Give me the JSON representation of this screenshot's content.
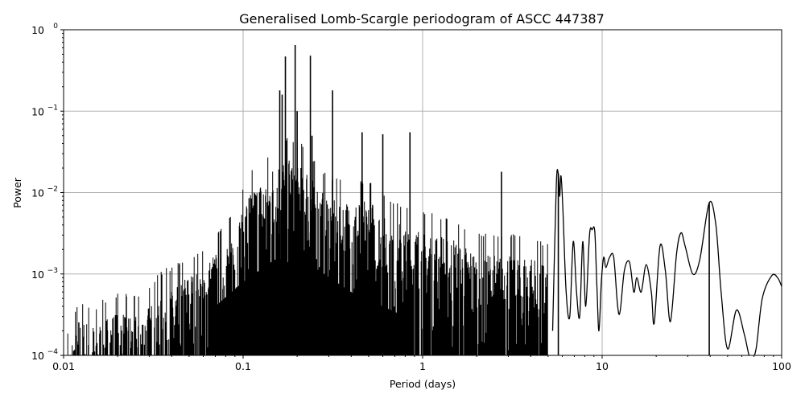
{
  "chart_data": {
    "type": "line",
    "title": "Generalised Lomb-Scargle periodogram of ASCC 447387",
    "xlabel": "Period (days)",
    "ylabel": "Power",
    "xscale": "log",
    "yscale": "log",
    "xlim": [
      0.01,
      100
    ],
    "ylim": [
      0.0001,
      1
    ],
    "grid": true,
    "x_ticks": [
      {
        "value": 0.01,
        "label": "0.01"
      },
      {
        "value": 0.1,
        "label": "0.1"
      },
      {
        "value": 1,
        "label": "1"
      },
      {
        "value": 10,
        "label": "10"
      },
      {
        "value": 100,
        "label": "100"
      }
    ],
    "y_ticks": [
      {
        "value": 0.0001,
        "base": "10",
        "exp": "−4"
      },
      {
        "value": 0.001,
        "base": "10",
        "exp": "−3"
      },
      {
        "value": 0.01,
        "base": "10",
        "exp": "−2"
      },
      {
        "value": 0.1,
        "base": "10",
        "exp": "−1"
      },
      {
        "value": 1,
        "base": "10",
        "exp": "0"
      }
    ],
    "line_color": "#000000",
    "grid_color": "#b0b0b0",
    "notable_peaks": [
      {
        "period": 0.16,
        "power": 0.18
      },
      {
        "period": 0.165,
        "power": 0.16
      },
      {
        "period": 0.172,
        "power": 0.47
      },
      {
        "period": 0.195,
        "power": 0.65
      },
      {
        "period": 0.2,
        "power": 0.1
      },
      {
        "period": 0.237,
        "power": 0.48
      },
      {
        "period": 0.242,
        "power": 0.05
      },
      {
        "period": 0.315,
        "power": 0.18
      },
      {
        "period": 0.46,
        "power": 0.055
      },
      {
        "period": 0.85,
        "power": 0.055
      },
      {
        "period": 0.6,
        "power": 0.052
      },
      {
        "period": 2.75,
        "power": 0.018
      },
      {
        "period": 5.7,
        "power": 0.017
      },
      {
        "period": 39.5,
        "power": 0.0075
      }
    ],
    "dense_envelope": [
      [
        0.0105,
        0.00013
      ],
      [
        0.012,
        0.0003
      ],
      [
        0.013,
        0.0003
      ],
      [
        0.015,
        0.00025
      ],
      [
        0.017,
        0.00032
      ],
      [
        0.02,
        0.00038
      ],
      [
        0.025,
        0.00034
      ],
      [
        0.03,
        0.00045
      ],
      [
        0.035,
        0.0007
      ],
      [
        0.04,
        0.0008
      ],
      [
        0.045,
        0.0009
      ],
      [
        0.05,
        0.0011
      ],
      [
        0.06,
        0.0013
      ],
      [
        0.07,
        0.002
      ],
      [
        0.08,
        0.0028
      ],
      [
        0.09,
        0.004
      ],
      [
        0.1,
        0.007
      ],
      [
        0.11,
        0.012
      ],
      [
        0.13,
        0.016
      ],
      [
        0.14,
        0.02
      ],
      [
        0.15,
        0.025
      ],
      [
        0.18,
        0.03
      ],
      [
        0.22,
        0.025
      ],
      [
        0.27,
        0.012
      ],
      [
        0.35,
        0.009
      ],
      [
        0.4,
        0.008
      ],
      [
        0.5,
        0.01
      ],
      [
        0.55,
        0.007
      ],
      [
        0.7,
        0.005
      ],
      [
        0.9,
        0.004
      ],
      [
        1.2,
        0.0035
      ],
      [
        1.5,
        0.003
      ],
      [
        2.0,
        0.002
      ],
      [
        3.0,
        0.002
      ],
      [
        4.0,
        0.0018
      ],
      [
        5.0,
        0.0015
      ]
    ],
    "long_period_curve": [
      [
        5.3,
        0.0002
      ],
      [
        5.55,
        0.012
      ],
      [
        5.7,
        0.017
      ],
      [
        5.8,
        0.009
      ],
      [
        5.9,
        0.016
      ],
      [
        6.05,
        0.006
      ],
      [
        6.3,
        0.0006
      ],
      [
        6.6,
        0.0003
      ],
      [
        6.9,
        0.0025
      ],
      [
        7.2,
        0.0006
      ],
      [
        7.5,
        0.0003
      ],
      [
        7.8,
        0.0025
      ],
      [
        8.1,
        0.0004
      ],
      [
        8.5,
        0.003
      ],
      [
        8.8,
        0.0035
      ],
      [
        9.1,
        0.0033
      ],
      [
        9.35,
        0.0007
      ],
      [
        9.6,
        0.0002
      ],
      [
        9.9,
        0.0008
      ],
      [
        10.2,
        0.0016
      ],
      [
        10.5,
        0.0012
      ],
      [
        11.0,
        0.0016
      ],
      [
        11.6,
        0.0016
      ],
      [
        12.2,
        0.0004
      ],
      [
        12.6,
        0.00035
      ],
      [
        13.3,
        0.0011
      ],
      [
        14.2,
        0.0014
      ],
      [
        15.0,
        0.0006
      ],
      [
        15.6,
        0.0009
      ],
      [
        16.5,
        0.0006
      ],
      [
        17.6,
        0.0013
      ],
      [
        18.8,
        0.0006
      ],
      [
        19.5,
        0.00025
      ],
      [
        21.0,
        0.0022
      ],
      [
        22.5,
        0.0011
      ],
      [
        24.0,
        0.00026
      ],
      [
        26.0,
        0.0018
      ],
      [
        27.5,
        0.0032
      ],
      [
        29.0,
        0.0022
      ],
      [
        32.0,
        0.001
      ],
      [
        35.0,
        0.0015
      ],
      [
        39.5,
        0.0075
      ],
      [
        43.0,
        0.004
      ],
      [
        46.0,
        0.0006
      ],
      [
        50.0,
        0.00012
      ],
      [
        56.0,
        0.00036
      ],
      [
        62.0,
        0.00018
      ],
      [
        67.0,
        9e-05
      ],
      [
        72.0,
        0.00012
      ],
      [
        78.0,
        0.0005
      ],
      [
        88.0,
        0.00095
      ],
      [
        95.0,
        0.0009
      ],
      [
        100.0,
        0.0007
      ]
    ]
  }
}
